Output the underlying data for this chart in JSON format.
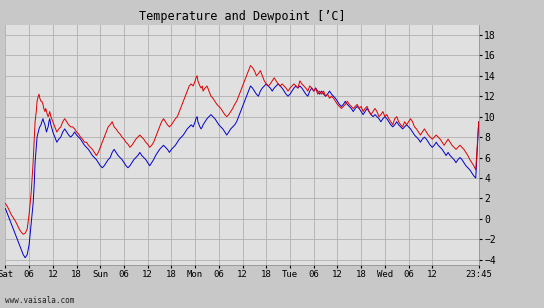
{
  "title": "Temperature and Dewpoint [’C]",
  "ylabel_right_ticks": [
    -4,
    -2,
    0,
    2,
    4,
    6,
    8,
    10,
    12,
    14,
    16,
    18
  ],
  "ylim": [
    -4.5,
    19.0
  ],
  "background_color": "#c8c8c8",
  "plot_bg_color": "#e0e0e0",
  "grid_color": "#b0b0b0",
  "temp_color": "#dd0000",
  "dewp_color": "#0000cc",
  "watermark": "www.vaisala.com",
  "xtick_labels": [
    "Sat",
    "06",
    "12",
    "18",
    "Sun",
    "06",
    "12",
    "18",
    "Mon",
    "06",
    "12",
    "18",
    "Tue",
    "06",
    "12",
    "18",
    "Wed",
    "06",
    "12",
    "23:45"
  ],
  "xtick_positions": [
    0,
    6,
    12,
    18,
    24,
    30,
    36,
    42,
    48,
    54,
    60,
    66,
    72,
    78,
    84,
    90,
    96,
    102,
    108,
    119.75
  ],
  "xmax": 119.75,
  "temp_x": [
    0.0,
    0.5,
    1.0,
    1.5,
    2.0,
    2.5,
    3.0,
    3.5,
    4.0,
    4.5,
    5.0,
    5.5,
    6.0,
    6.5,
    7.0,
    7.3,
    7.5,
    7.8,
    8.0,
    8.3,
    8.5,
    8.7,
    9.0,
    9.2,
    9.5,
    9.7,
    10.0,
    10.2,
    10.4,
    10.6,
    10.8,
    11.0,
    11.2,
    11.5,
    12.0,
    12.5,
    13.0,
    13.5,
    14.0,
    14.5,
    15.0,
    15.5,
    16.0,
    16.5,
    17.0,
    17.5,
    18.0,
    18.5,
    19.0,
    19.5,
    20.0,
    20.5,
    21.0,
    21.5,
    22.0,
    22.5,
    23.0,
    23.5,
    24.0,
    24.5,
    25.0,
    25.5,
    26.0,
    26.5,
    27.0,
    27.5,
    28.0,
    28.5,
    29.0,
    29.5,
    30.0,
    30.5,
    31.0,
    31.5,
    32.0,
    32.5,
    33.0,
    33.5,
    34.0,
    34.5,
    35.0,
    35.5,
    36.0,
    36.5,
    37.0,
    37.5,
    38.0,
    38.5,
    39.0,
    39.5,
    40.0,
    40.5,
    41.0,
    41.5,
    42.0,
    42.5,
    43.0,
    43.5,
    44.0,
    44.5,
    45.0,
    45.5,
    46.0,
    46.5,
    47.0,
    47.5,
    48.0,
    48.2,
    48.5,
    48.7,
    49.0,
    49.2,
    49.5,
    49.8,
    50.0,
    50.5,
    51.0,
    51.5,
    52.0,
    52.5,
    53.0,
    53.5,
    54.0,
    54.5,
    55.0,
    55.5,
    56.0,
    56.5,
    57.0,
    57.5,
    58.0,
    58.5,
    59.0,
    59.5,
    60.0,
    60.5,
    61.0,
    61.5,
    62.0,
    62.5,
    63.0,
    63.5,
    64.0,
    64.5,
    65.0,
    65.5,
    66.0,
    66.5,
    67.0,
    67.5,
    68.0,
    68.5,
    69.0,
    69.5,
    70.0,
    70.5,
    71.0,
    71.5,
    72.0,
    72.5,
    73.0,
    73.5,
    74.0,
    74.5,
    75.0,
    75.5,
    76.0,
    76.5,
    77.0,
    77.5,
    78.0,
    78.5,
    79.0,
    79.5,
    80.0,
    80.5,
    81.0,
    81.5,
    82.0,
    82.5,
    83.0,
    83.5,
    84.0,
    84.5,
    85.0,
    85.5,
    86.0,
    86.5,
    87.0,
    87.5,
    88.0,
    88.5,
    89.0,
    89.5,
    90.0,
    90.5,
    91.0,
    91.5,
    92.0,
    92.5,
    93.0,
    93.5,
    94.0,
    94.5,
    95.0,
    95.5,
    96.0,
    96.5,
    97.0,
    97.5,
    98.0,
    98.5,
    99.0,
    99.5,
    100.0,
    100.5,
    101.0,
    101.5,
    102.0,
    102.5,
    103.0,
    103.5,
    104.0,
    104.5,
    105.0,
    105.5,
    106.0,
    106.5,
    107.0,
    107.5,
    108.0,
    108.5,
    109.0,
    109.5,
    110.0,
    110.5,
    111.0,
    111.5,
    112.0,
    112.5,
    113.0,
    113.5,
    114.0,
    114.5,
    115.0,
    115.5,
    116.0,
    116.5,
    117.0,
    117.5,
    118.0,
    118.5,
    119.0,
    119.75
  ],
  "temp_y": [
    1.5,
    1.2,
    0.8,
    0.4,
    0.1,
    -0.2,
    -0.6,
    -1.0,
    -1.3,
    -1.5,
    -1.4,
    -1.0,
    0.5,
    2.5,
    5.5,
    8.0,
    9.5,
    10.5,
    11.5,
    12.0,
    12.2,
    11.8,
    11.5,
    11.5,
    11.2,
    10.8,
    10.5,
    10.8,
    10.5,
    10.2,
    10.0,
    10.2,
    10.5,
    10.0,
    9.5,
    9.0,
    8.5,
    8.8,
    9.0,
    9.5,
    9.8,
    9.5,
    9.2,
    9.0,
    9.0,
    8.8,
    8.5,
    8.3,
    8.0,
    7.8,
    7.5,
    7.5,
    7.2,
    7.0,
    6.8,
    6.5,
    6.2,
    6.5,
    7.0,
    7.5,
    8.0,
    8.5,
    9.0,
    9.2,
    9.5,
    9.0,
    8.8,
    8.5,
    8.3,
    8.0,
    7.8,
    7.5,
    7.3,
    7.0,
    7.2,
    7.5,
    7.8,
    8.0,
    8.2,
    8.0,
    7.8,
    7.5,
    7.3,
    7.0,
    7.2,
    7.5,
    8.0,
    8.5,
    9.0,
    9.5,
    9.8,
    9.5,
    9.2,
    9.0,
    9.2,
    9.5,
    9.8,
    10.0,
    10.5,
    11.0,
    11.5,
    12.0,
    12.5,
    13.0,
    13.2,
    13.0,
    13.5,
    13.8,
    14.0,
    13.5,
    13.2,
    13.0,
    12.8,
    13.0,
    12.5,
    12.8,
    13.0,
    12.5,
    12.0,
    11.8,
    11.5,
    11.2,
    11.0,
    10.8,
    10.5,
    10.2,
    10.0,
    10.2,
    10.5,
    10.8,
    11.2,
    11.5,
    12.0,
    12.5,
    13.0,
    13.5,
    14.0,
    14.5,
    15.0,
    14.8,
    14.5,
    14.0,
    14.2,
    14.5,
    14.0,
    13.5,
    13.2,
    13.0,
    13.2,
    13.5,
    13.8,
    13.5,
    13.2,
    13.0,
    13.2,
    13.0,
    12.8,
    12.5,
    12.8,
    13.0,
    13.2,
    13.0,
    12.8,
    13.5,
    13.2,
    13.0,
    12.8,
    12.5,
    13.0,
    12.8,
    12.5,
    12.8,
    12.2,
    12.5,
    12.2,
    12.5,
    12.0,
    12.2,
    11.8,
    12.0,
    11.8,
    11.5,
    11.2,
    11.0,
    10.8,
    11.0,
    11.2,
    11.5,
    11.2,
    11.0,
    10.8,
    11.0,
    11.2,
    10.8,
    11.0,
    10.5,
    10.8,
    11.0,
    10.5,
    10.2,
    10.5,
    10.8,
    10.5,
    10.0,
    10.2,
    10.5,
    10.0,
    10.2,
    9.8,
    9.5,
    9.2,
    9.8,
    10.0,
    9.5,
    9.2,
    9.0,
    9.5,
    9.2,
    9.5,
    9.8,
    9.5,
    9.0,
    8.8,
    8.5,
    8.2,
    8.5,
    8.8,
    8.5,
    8.2,
    8.0,
    7.8,
    8.0,
    8.2,
    8.0,
    7.8,
    7.5,
    7.2,
    7.5,
    7.8,
    7.5,
    7.2,
    7.0,
    6.8,
    7.0,
    7.2,
    7.0,
    6.8,
    6.5,
    6.2,
    5.8,
    5.5,
    5.2,
    4.8,
    9.5
  ],
  "dewp_x": [
    0.0,
    0.5,
    1.0,
    1.5,
    2.0,
    2.5,
    3.0,
    3.5,
    4.0,
    4.5,
    5.0,
    5.5,
    6.0,
    6.5,
    7.0,
    7.3,
    7.5,
    7.8,
    8.0,
    8.3,
    8.5,
    8.7,
    9.0,
    9.2,
    9.5,
    9.7,
    10.0,
    10.2,
    10.4,
    10.6,
    10.8,
    11.0,
    11.2,
    11.5,
    12.0,
    12.5,
    13.0,
    13.5,
    14.0,
    14.5,
    15.0,
    15.5,
    16.0,
    16.5,
    17.0,
    17.5,
    18.0,
    18.5,
    19.0,
    19.5,
    20.0,
    20.5,
    21.0,
    21.5,
    22.0,
    22.5,
    23.0,
    23.5,
    24.0,
    24.5,
    25.0,
    25.5,
    26.0,
    26.5,
    27.0,
    27.5,
    28.0,
    28.5,
    29.0,
    29.5,
    30.0,
    30.5,
    31.0,
    31.5,
    32.0,
    32.5,
    33.0,
    33.5,
    34.0,
    34.5,
    35.0,
    35.5,
    36.0,
    36.5,
    37.0,
    37.5,
    38.0,
    38.5,
    39.0,
    39.5,
    40.0,
    40.5,
    41.0,
    41.5,
    42.0,
    42.5,
    43.0,
    43.5,
    44.0,
    44.5,
    45.0,
    45.5,
    46.0,
    46.5,
    47.0,
    47.5,
    48.0,
    48.2,
    48.5,
    48.7,
    49.0,
    49.2,
    49.5,
    49.8,
    50.0,
    50.5,
    51.0,
    51.5,
    52.0,
    52.5,
    53.0,
    53.5,
    54.0,
    54.5,
    55.0,
    55.5,
    56.0,
    56.5,
    57.0,
    57.5,
    58.0,
    58.5,
    59.0,
    59.5,
    60.0,
    60.5,
    61.0,
    61.5,
    62.0,
    62.5,
    63.0,
    63.5,
    64.0,
    64.5,
    65.0,
    65.5,
    66.0,
    66.5,
    67.0,
    67.5,
    68.0,
    68.5,
    69.0,
    69.5,
    70.0,
    70.5,
    71.0,
    71.5,
    72.0,
    72.5,
    73.0,
    73.5,
    74.0,
    74.5,
    75.0,
    75.5,
    76.0,
    76.5,
    77.0,
    77.5,
    78.0,
    78.5,
    79.0,
    79.5,
    80.0,
    80.5,
    81.0,
    81.5,
    82.0,
    82.5,
    83.0,
    83.5,
    84.0,
    84.5,
    85.0,
    85.5,
    86.0,
    86.5,
    87.0,
    87.5,
    88.0,
    88.5,
    89.0,
    89.5,
    90.0,
    90.5,
    91.0,
    91.5,
    92.0,
    92.5,
    93.0,
    93.5,
    94.0,
    94.5,
    95.0,
    95.5,
    96.0,
    96.5,
    97.0,
    97.5,
    98.0,
    98.5,
    99.0,
    99.5,
    100.0,
    100.5,
    101.0,
    101.5,
    102.0,
    102.5,
    103.0,
    103.5,
    104.0,
    104.5,
    105.0,
    105.5,
    106.0,
    106.5,
    107.0,
    107.5,
    108.0,
    108.5,
    109.0,
    109.5,
    110.0,
    110.5,
    111.0,
    111.5,
    112.0,
    112.5,
    113.0,
    113.5,
    114.0,
    114.5,
    115.0,
    115.5,
    116.0,
    116.5,
    117.0,
    117.5,
    118.0,
    118.5,
    119.0,
    119.75
  ],
  "dewp_y": [
    1.0,
    0.5,
    0.0,
    -0.5,
    -1.0,
    -1.5,
    -2.0,
    -2.5,
    -3.0,
    -3.5,
    -3.8,
    -3.5,
    -2.5,
    -0.5,
    1.5,
    3.5,
    5.5,
    7.0,
    8.0,
    8.5,
    8.8,
    9.0,
    9.2,
    9.5,
    9.8,
    9.5,
    9.2,
    8.8,
    8.5,
    8.8,
    9.0,
    9.5,
    9.8,
    9.2,
    8.5,
    8.0,
    7.5,
    7.8,
    8.0,
    8.5,
    8.8,
    8.5,
    8.2,
    8.0,
    8.2,
    8.5,
    8.2,
    8.0,
    7.8,
    7.5,
    7.2,
    7.0,
    6.8,
    6.5,
    6.2,
    6.0,
    5.8,
    5.5,
    5.2,
    5.0,
    5.2,
    5.5,
    5.8,
    6.0,
    6.5,
    6.8,
    6.5,
    6.2,
    6.0,
    5.8,
    5.5,
    5.2,
    5.0,
    5.2,
    5.5,
    5.8,
    6.0,
    6.2,
    6.5,
    6.2,
    6.0,
    5.8,
    5.5,
    5.2,
    5.5,
    5.8,
    6.2,
    6.5,
    6.8,
    7.0,
    7.2,
    7.0,
    6.8,
    6.5,
    6.8,
    7.0,
    7.2,
    7.5,
    7.8,
    8.0,
    8.2,
    8.5,
    8.8,
    9.0,
    9.2,
    9.0,
    9.5,
    9.8,
    10.0,
    9.5,
    9.2,
    9.0,
    8.8,
    9.0,
    9.2,
    9.5,
    9.8,
    10.0,
    10.2,
    10.0,
    9.8,
    9.5,
    9.2,
    9.0,
    8.8,
    8.5,
    8.2,
    8.5,
    8.8,
    9.0,
    9.2,
    9.5,
    10.0,
    10.5,
    11.0,
    11.5,
    12.0,
    12.5,
    13.0,
    12.8,
    12.5,
    12.2,
    12.0,
    12.5,
    12.8,
    13.0,
    13.2,
    13.0,
    12.8,
    12.5,
    12.8,
    13.0,
    13.2,
    13.0,
    12.8,
    12.5,
    12.2,
    12.0,
    12.2,
    12.5,
    12.8,
    13.0,
    12.8,
    13.0,
    12.8,
    12.5,
    12.2,
    12.0,
    12.5,
    12.8,
    12.5,
    12.8,
    12.5,
    12.2,
    12.5,
    12.2,
    12.0,
    12.2,
    12.5,
    12.2,
    12.0,
    11.8,
    11.5,
    11.2,
    11.0,
    11.2,
    11.5,
    11.2,
    11.0,
    10.8,
    10.5,
    10.8,
    11.0,
    10.8,
    10.5,
    10.2,
    10.5,
    10.8,
    10.5,
    10.2,
    10.0,
    10.2,
    10.0,
    9.8,
    9.5,
    9.8,
    10.0,
    9.8,
    9.5,
    9.2,
    9.0,
    9.2,
    9.5,
    9.2,
    9.0,
    8.8,
    9.0,
    9.2,
    9.0,
    8.8,
    8.5,
    8.2,
    8.0,
    7.8,
    7.5,
    7.8,
    8.0,
    7.8,
    7.5,
    7.2,
    7.0,
    7.2,
    7.5,
    7.2,
    7.0,
    6.8,
    6.5,
    6.2,
    6.5,
    6.2,
    6.0,
    5.8,
    5.5,
    5.8,
    6.0,
    5.8,
    5.5,
    5.2,
    5.0,
    4.8,
    4.5,
    4.2,
    4.0,
    9.5
  ]
}
